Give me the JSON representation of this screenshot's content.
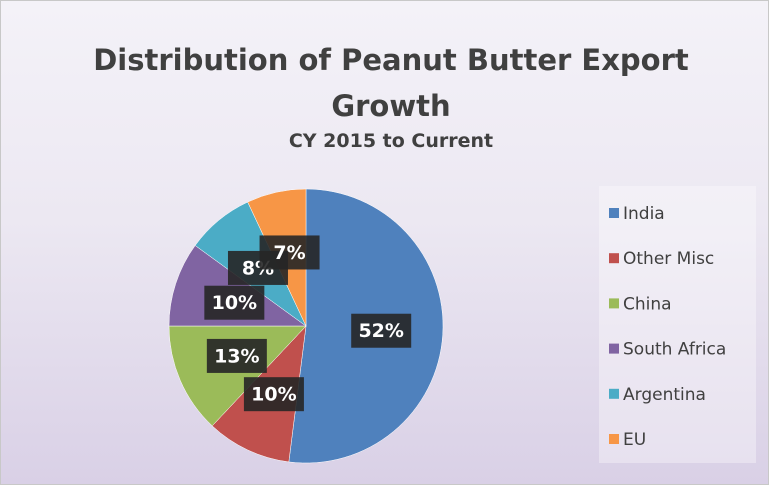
{
  "chart_data": {
    "type": "pie",
    "title": "Distribution of Peanut Butter Export Growth",
    "subtitle": "CY 2015 to Current",
    "categories": [
      "India",
      "Other Misc",
      "China",
      "South Africa",
      "Argentina",
      "EU"
    ],
    "values": [
      52,
      10,
      13,
      10,
      8,
      7
    ],
    "value_labels": [
      "52%",
      "10%",
      "13%",
      "10%",
      "8%",
      "7%"
    ],
    "colors": [
      "#4f81bd",
      "#c0504d",
      "#9bbb59",
      "#8064a2",
      "#4bacc6",
      "#f79646"
    ],
    "legend": "right"
  }
}
